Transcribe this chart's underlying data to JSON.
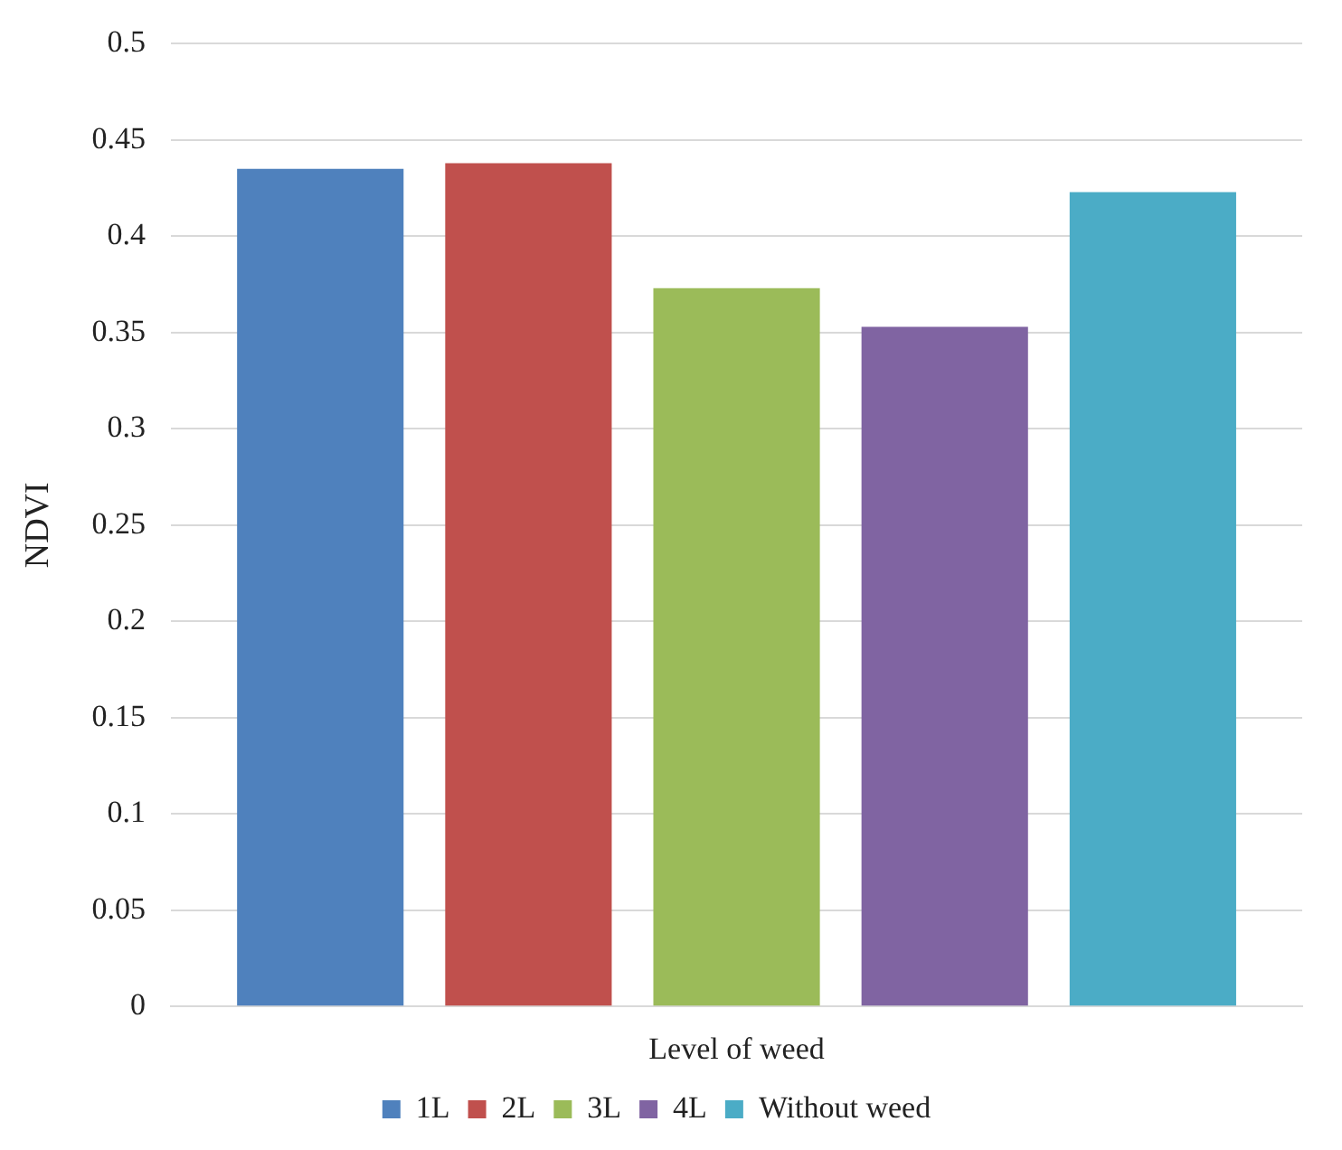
{
  "chart_data": {
    "type": "bar",
    "xlabel": "Level of weed",
    "ylabel": "NDVI",
    "categories": [
      null
    ],
    "series": [
      {
        "name": "1L",
        "color": "#4f81bd",
        "values": [
          0.435
        ]
      },
      {
        "name": "2L",
        "color": "#c0504d",
        "values": [
          0.438
        ]
      },
      {
        "name": "3L",
        "color": "#9bbb59",
        "values": [
          0.373
        ]
      },
      {
        "name": "4L",
        "color": "#8064a2",
        "values": [
          0.353
        ]
      },
      {
        "name": "Without weed",
        "color": "#4bacc6",
        "values": [
          0.423
        ]
      }
    ],
    "ylim": [
      0,
      0.5
    ],
    "yticks": [
      0,
      0.05,
      0.1,
      0.15,
      0.2,
      0.25,
      0.3,
      0.35,
      0.4,
      0.45,
      0.5
    ],
    "grid": "y",
    "legend": "bottom"
  }
}
